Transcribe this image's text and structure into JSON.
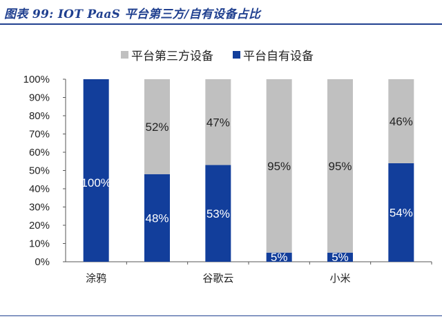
{
  "figure_title": "图表 99:  IOT PaaS 平台第三方/自有设备占比",
  "colors": {
    "third_party": "#c0c0c0",
    "own": "#123e9b",
    "title": "#1f3f8f"
  },
  "chart_data": {
    "type": "bar",
    "stacked": true,
    "normalized": true,
    "categories": [
      "涂鸦",
      "",
      "谷歌云",
      "",
      "小米",
      ""
    ],
    "series": [
      {
        "name": "平台自有设备",
        "values": [
          100,
          48,
          53,
          5,
          5,
          54
        ],
        "labels": [
          "100%",
          "48%",
          "53%",
          "5%",
          "5%",
          "54%"
        ]
      },
      {
        "name": "平台第三方设备",
        "values": [
          0,
          52,
          47,
          95,
          95,
          46
        ],
        "labels": [
          "",
          "52%",
          "47%",
          "95%",
          "95%",
          "46%"
        ]
      }
    ],
    "legend_order": [
      "平台第三方设备",
      "平台自有设备"
    ],
    "legend_position": "top",
    "y_ticks": [
      "0%",
      "10%",
      "20%",
      "30%",
      "40%",
      "50%",
      "60%",
      "70%",
      "80%",
      "90%",
      "100%"
    ],
    "ylim": [
      0,
      100
    ],
    "grid": false
  }
}
